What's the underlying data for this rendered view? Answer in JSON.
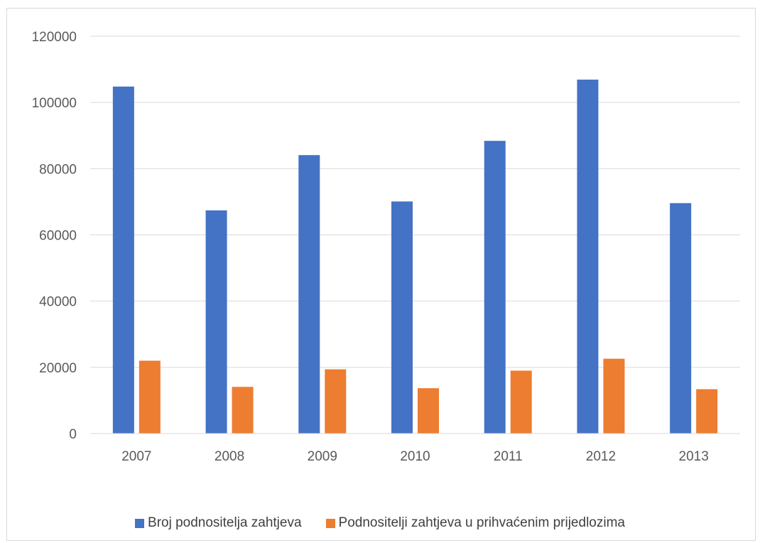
{
  "chart_data": {
    "type": "bar",
    "title": "",
    "xlabel": "",
    "ylabel": "",
    "categories": [
      "2007",
      "2008",
      "2009",
      "2010",
      "2011",
      "2012",
      "2013"
    ],
    "series": [
      {
        "name": "Broj podnositelja zahtjeva",
        "color": "#4472C4",
        "values": [
          104800,
          67400,
          84100,
          70100,
          88400,
          106900,
          69600
        ]
      },
      {
        "name": "Podnositelji zahtjeva u prihvaćenim prijedlozima",
        "color": "#ED7D31",
        "values": [
          22000,
          14100,
          19400,
          13700,
          19000,
          22600,
          13400
        ]
      }
    ],
    "ylim": [
      0,
      120000
    ],
    "yticks": [
      "0",
      "20000",
      "40000",
      "60000",
      "80000",
      "100000",
      "120000"
    ],
    "grid": true,
    "legend_position": "bottom"
  }
}
